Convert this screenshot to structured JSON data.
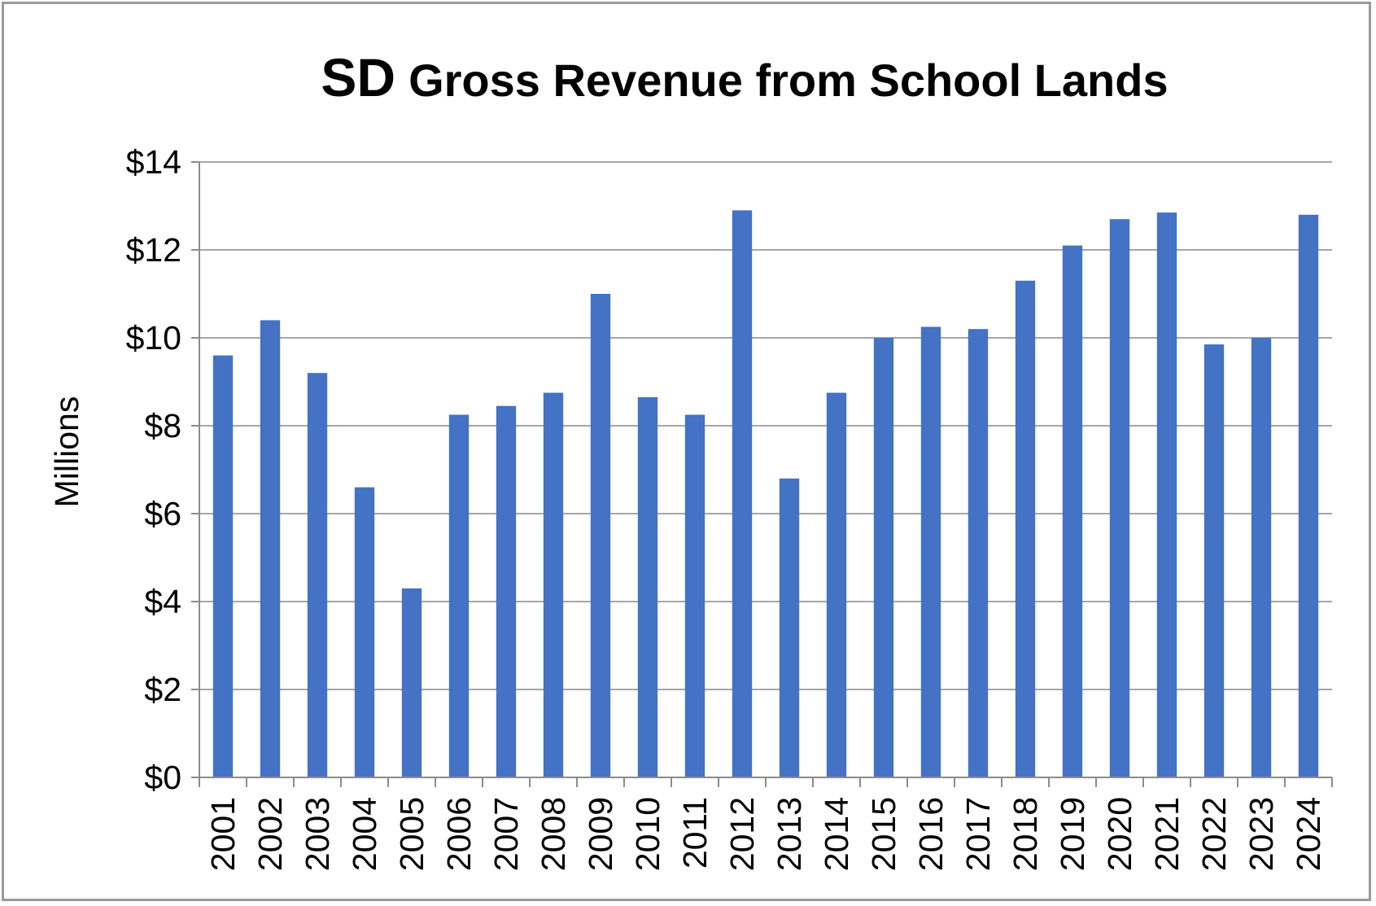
{
  "chart_data": {
    "type": "bar",
    "title_prefix": "SD",
    "title_rest": "Gross Revenue from School Lands",
    "xlabel": "",
    "ylabel": "Millions",
    "ylim": [
      0,
      14
    ],
    "y_ticks": [
      0,
      2,
      4,
      6,
      8,
      10,
      12,
      14
    ],
    "y_tick_labels": [
      "$0",
      "$2",
      "$4",
      "$6",
      "$8",
      "$10",
      "$12",
      "$14"
    ],
    "grid": true,
    "legend": "none",
    "bar_color": "#4472C4",
    "categories": [
      "2001",
      "2002",
      "2003",
      "2004",
      "2005",
      "2006",
      "2007",
      "2008",
      "2009",
      "2010",
      "2011",
      "2012",
      "2013",
      "2014",
      "2015",
      "2016",
      "2017",
      "2018",
      "2019",
      "2020",
      "2021",
      "2022",
      "2023",
      "2024"
    ],
    "values": [
      9.6,
      10.4,
      9.2,
      6.6,
      4.3,
      8.25,
      8.45,
      8.75,
      11.0,
      8.65,
      8.25,
      12.9,
      6.8,
      8.75,
      10.0,
      10.25,
      10.2,
      11.3,
      12.1,
      12.7,
      12.85,
      9.85,
      10.0,
      12.8
    ]
  }
}
